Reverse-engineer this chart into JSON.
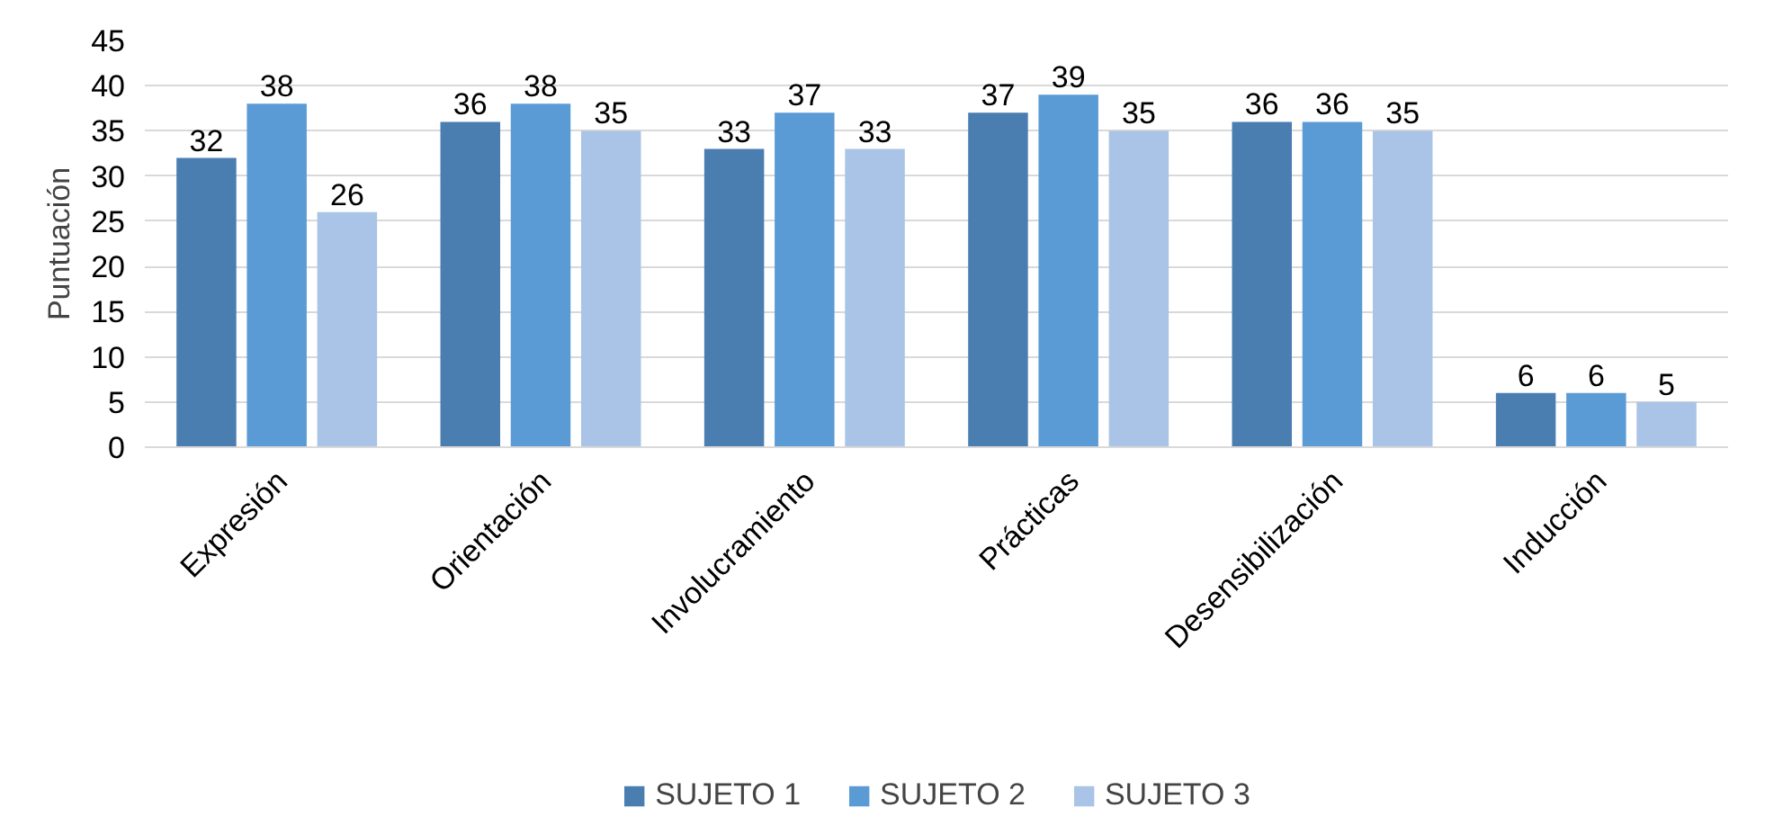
{
  "chart_data": {
    "type": "bar",
    "ylabel": "Puntuación",
    "categories": [
      "Expresión",
      "Orientación",
      "Involucramiento",
      "Prácticas",
      "Desensibilización",
      "Inducción"
    ],
    "series": [
      {
        "name": "SUJETO 1",
        "color": "#4a7eb0",
        "values": [
          32,
          36,
          33,
          37,
          36,
          6
        ]
      },
      {
        "name": "SUJETO 2",
        "color": "#5b9bd5",
        "values": [
          38,
          38,
          37,
          39,
          36,
          6
        ]
      },
      {
        "name": "SUJETO 3",
        "color": "#a9c4e6",
        "values": [
          26,
          35,
          33,
          35,
          35,
          5
        ]
      }
    ],
    "ylim": [
      0,
      45
    ],
    "yticks": [
      0,
      5,
      10,
      15,
      20,
      25,
      30,
      35,
      40,
      45
    ],
    "grid": "y",
    "legend": "bottom",
    "data_labels": true
  }
}
